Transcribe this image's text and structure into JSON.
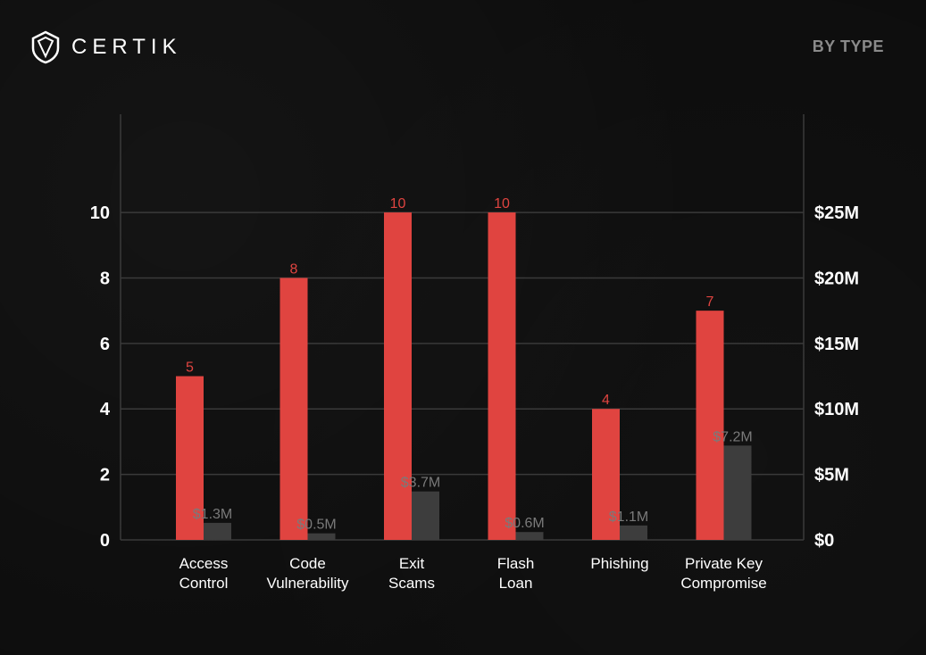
{
  "brand": {
    "name": "CERTIK",
    "logo_icon": "certik-shield-icon"
  },
  "header": {
    "label": "BY TYPE"
  },
  "colors": {
    "background": "#0d0d0d",
    "count_bar": "#e04440",
    "loss_bar": "#3d3d3d",
    "count_label": "#e04440",
    "loss_label": "#7a7a7a",
    "axis_text": "#ffffff",
    "grid": "#3a3a3a"
  },
  "chart_data": {
    "type": "bar",
    "categories": [
      [
        "Access",
        "Control"
      ],
      [
        "Code",
        "Vulnerability"
      ],
      [
        "Exit",
        "Scams"
      ],
      [
        "Flash",
        "Loan"
      ],
      [
        "Phishing"
      ],
      [
        "Private Key",
        "Compromise"
      ]
    ],
    "series": [
      {
        "axis": "left",
        "values": [
          5,
          8,
          10,
          10,
          4,
          7
        ],
        "labels": [
          "5",
          "8",
          "10",
          "10",
          "4",
          "7"
        ]
      },
      {
        "axis": "right",
        "values": [
          1.3,
          0.5,
          3.7,
          0.6,
          1.1,
          7.2
        ],
        "labels": [
          "$1.3M",
          "$0.5M",
          "$3.7M",
          "$0.6M",
          "$1.1M",
          "$7.2M"
        ]
      }
    ],
    "left_axis": {
      "ticks": [
        0,
        2,
        4,
        6,
        8,
        10
      ],
      "tick_labels": [
        "0",
        "2",
        "4",
        "6",
        "8",
        "10"
      ],
      "ylim": [
        0,
        13
      ]
    },
    "right_axis": {
      "ticks": [
        0,
        5,
        10,
        15,
        20,
        25
      ],
      "tick_labels": [
        "$0",
        "$5M",
        "$10M",
        "$15M",
        "$20M",
        "$25M"
      ],
      "ylim": [
        0,
        32.5
      ]
    },
    "grid": true,
    "legend": "none"
  }
}
